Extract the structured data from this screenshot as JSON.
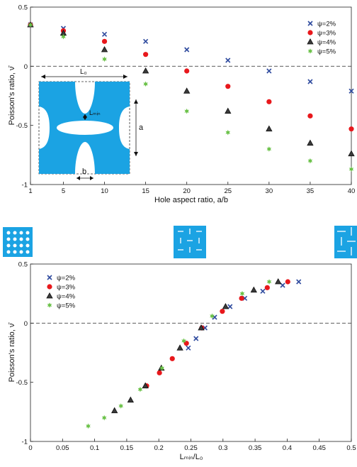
{
  "colors": {
    "psi2": "#2e4a9e",
    "psi3": "#e8181c",
    "psi4": "#2b2b2b",
    "psi5": "#6cc24a",
    "cell_blue": "#1ba3e3",
    "baseline": "#444444"
  },
  "chart_data": [
    {
      "type": "scatter",
      "xlabel": "Hole aspect ratio, a/b",
      "ylabel": "Poisson's ratio, ν̄",
      "xlim": [
        1,
        40
      ],
      "ylim": [
        -1,
        0.5
      ],
      "xticks": [
        1,
        5,
        10,
        15,
        20,
        25,
        30,
        35,
        40
      ],
      "yticks": [
        0.5,
        0,
        -0.5,
        -1
      ],
      "ytick_labels": [
        "0.5",
        "0",
        "-0.5",
        "-1"
      ],
      "legend_position": "top-right",
      "reference_line_y": 0,
      "series": [
        {
          "name": "ψ=2%",
          "marker": "x",
          "x": [
            1,
            5,
            10,
            15,
            20,
            25,
            30,
            35,
            40
          ],
          "y": [
            0.35,
            0.32,
            0.27,
            0.21,
            0.14,
            0.05,
            -0.04,
            -0.13,
            -0.21
          ]
        },
        {
          "name": "ψ=3%",
          "marker": "circle",
          "x": [
            1,
            5,
            10,
            15,
            20,
            25,
            30,
            35,
            40
          ],
          "y": [
            0.35,
            0.3,
            0.21,
            0.1,
            -0.04,
            -0.17,
            -0.3,
            -0.42,
            -0.53
          ]
        },
        {
          "name": "ψ=4%",
          "marker": "triangle",
          "x": [
            1,
            5,
            10,
            15,
            20,
            25,
            30,
            35,
            40
          ],
          "y": [
            0.35,
            0.28,
            0.14,
            -0.04,
            -0.21,
            -0.38,
            -0.53,
            -0.65,
            -0.74
          ]
        },
        {
          "name": "ψ=5%",
          "marker": "star",
          "x": [
            1,
            5,
            10,
            15,
            20,
            25,
            30,
            35,
            40
          ],
          "y": [
            0.35,
            0.25,
            0.06,
            -0.15,
            -0.38,
            -0.56,
            -0.7,
            -0.8,
            -0.87
          ]
        }
      ],
      "inset_labels": {
        "l0": "L₀",
        "lmin": "Lₘᵢₙ",
        "a": "a",
        "b": "b"
      }
    },
    {
      "type": "scatter",
      "xlabel": "Lₘᵢₙ/L₀",
      "ylabel": "Poisson's ratio, ν̄",
      "xlim": [
        0,
        0.5
      ],
      "ylim": [
        -1,
        0.5
      ],
      "xticks": [
        0,
        0.05,
        0.1,
        0.15,
        0.2,
        0.25,
        0.3,
        0.35,
        0.4,
        0.45,
        0.5
      ],
      "xtick_labels": [
        "0",
        "0.05",
        "0.1",
        "0.15",
        "0.2",
        "0.25",
        "0.3",
        "0.35",
        "0.4",
        "0.45",
        "0.5"
      ],
      "yticks": [
        0.5,
        0,
        -0.5,
        -1
      ],
      "ytick_labels": [
        "0.5",
        "0",
        "-0.5",
        "-1"
      ],
      "legend_position": "top-left",
      "reference_line_y": 0,
      "series": [
        {
          "name": "ψ=2%",
          "marker": "x",
          "x": [
            0.418,
            0.393,
            0.362,
            0.334,
            0.311,
            0.287,
            0.272,
            0.258,
            0.246
          ],
          "y": [
            0.35,
            0.32,
            0.27,
            0.21,
            0.14,
            0.05,
            -0.04,
            -0.13,
            -0.21
          ]
        },
        {
          "name": "ψ=3%",
          "marker": "circle",
          "x": [
            0.401,
            0.369,
            0.329,
            0.299,
            0.267,
            0.243,
            0.221,
            0.201,
            0.181
          ],
          "y": [
            0.35,
            0.3,
            0.21,
            0.1,
            -0.04,
            -0.17,
            -0.3,
            -0.42,
            -0.53
          ]
        },
        {
          "name": "ψ=4%",
          "marker": "triangle",
          "x": [
            0.386,
            0.348,
            0.304,
            0.266,
            0.233,
            0.204,
            0.179,
            0.156,
            0.131
          ],
          "y": [
            0.35,
            0.28,
            0.14,
            -0.04,
            -0.21,
            -0.38,
            -0.53,
            -0.65,
            -0.74
          ]
        },
        {
          "name": "ψ=5%",
          "marker": "star",
          "x": [
            0.372,
            0.33,
            0.283,
            0.239,
            0.205,
            0.171,
            0.141,
            0.115,
            0.09
          ],
          "y": [
            0.35,
            0.25,
            0.06,
            -0.15,
            -0.38,
            -0.56,
            -0.7,
            -0.8,
            -0.87
          ]
        }
      ]
    }
  ]
}
